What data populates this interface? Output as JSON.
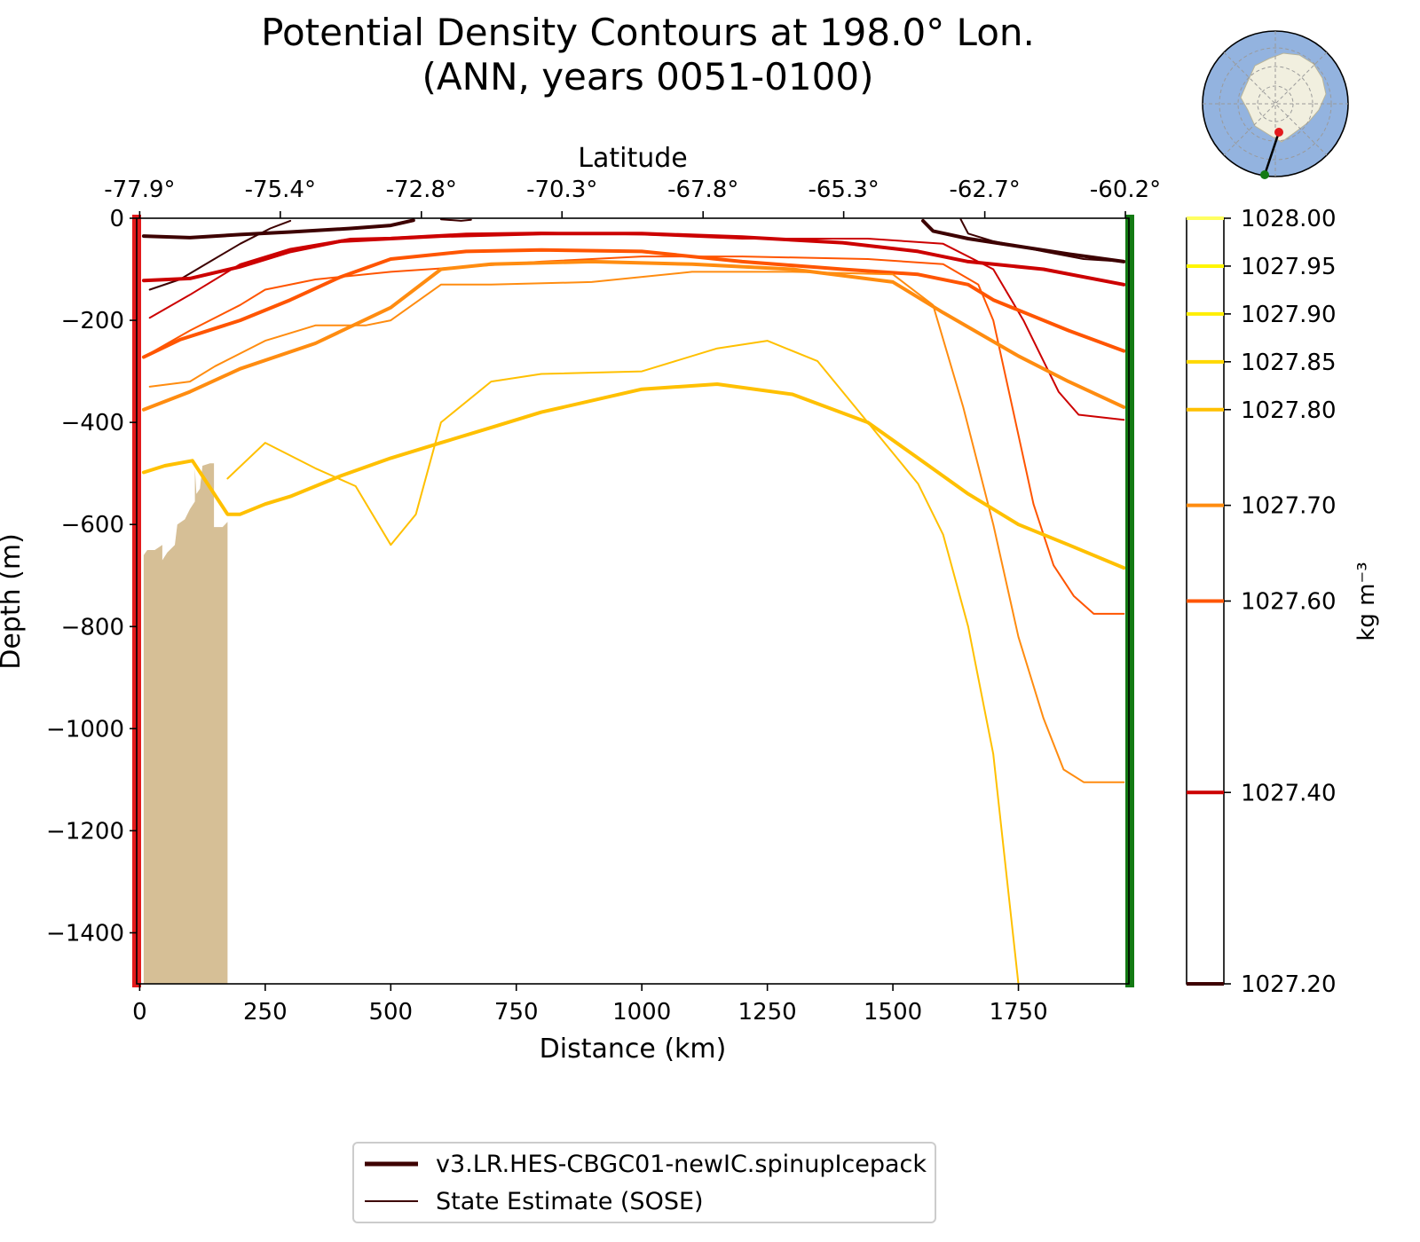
{
  "chart_data": {
    "type": "line",
    "title": "Potential Density Contours at 198.0° Lon.",
    "subtitle": "(ANN, years 0051-0100)",
    "xlabel": "Distance (km)",
    "ylabel": "Depth (m)",
    "top_xlabel": "Latitude",
    "xlim": [
      -6,
      1970
    ],
    "ylim": [
      -1500,
      0
    ],
    "x_ticks": [
      0,
      250,
      500,
      750,
      1000,
      1250,
      1500,
      1750
    ],
    "x_tick_labels": [
      "0",
      "250",
      "500",
      "750",
      "1000",
      "1250",
      "1500",
      "1750"
    ],
    "y_ticks": [
      0,
      -200,
      -400,
      -600,
      -800,
      -1000,
      -1200,
      -1400
    ],
    "y_tick_labels": [
      "0",
      "−200",
      "−400",
      "−600",
      "−800",
      "−1000",
      "−1200",
      "−1400"
    ],
    "lat_ticks_km": [
      0,
      280,
      561,
      841,
      1122,
      1402,
      1683,
      1963
    ],
    "lat_tick_labels": [
      "-77.9°",
      "-75.4°",
      "-72.8°",
      "-70.3°",
      "-67.8°",
      "-65.3°",
      "-62.7°",
      "-60.2°"
    ],
    "start_marker_color": "#e31a1c",
    "end_marker_color": "#137a13",
    "bathymetry_color": "#d6bf96",
    "bathymetry": [
      [
        8,
        -1500
      ],
      [
        8,
        -660
      ],
      [
        15,
        -650
      ],
      [
        30,
        -650
      ],
      [
        45,
        -640
      ],
      [
        45,
        -670
      ],
      [
        55,
        -655
      ],
      [
        70,
        -640
      ],
      [
        75,
        -600
      ],
      [
        90,
        -590
      ],
      [
        100,
        -570
      ],
      [
        110,
        -555
      ],
      [
        110,
        -490
      ],
      [
        113,
        -540
      ],
      [
        120,
        -530
      ],
      [
        125,
        -485
      ],
      [
        140,
        -480
      ],
      [
        148,
        -480
      ],
      [
        148,
        -605
      ],
      [
        165,
        -605
      ],
      [
        175,
        -595
      ],
      [
        175,
        -1500
      ]
    ],
    "colorbar": {
      "label": "kg m⁻³",
      "levels": [
        1027.2,
        1027.4,
        1027.6,
        1027.7,
        1027.8,
        1027.85,
        1027.9,
        1027.95,
        1028.0
      ],
      "tick_labels": [
        "1027.20",
        "1027.40",
        "1027.60",
        "1027.70",
        "1027.80",
        "1027.85",
        "1027.90",
        "1027.95",
        "1028.00"
      ],
      "colors": [
        "#3d0000",
        "#cc0000",
        "#ff5500",
        "#ff8c10",
        "#ffc000",
        "#ffd800",
        "#ffee00",
        "#fff600",
        "#ffff60"
      ]
    },
    "legend": [
      {
        "name": "v3.LR.HES-CBGC01-newIC.spinupIcepack",
        "style": "thick",
        "color": "#3d0000"
      },
      {
        "name": "State Estimate (SOSE)",
        "style": "thin",
        "color": "#3d0000"
      }
    ],
    "series": [
      {
        "source": "model",
        "level": 1027.2,
        "color": "#3d0000",
        "points": [
          [
            8,
            -35
          ],
          [
            100,
            -38
          ],
          [
            200,
            -32
          ],
          [
            300,
            -27
          ],
          [
            420,
            -20
          ],
          [
            500,
            -14
          ],
          [
            545,
            -4
          ]
        ]
      },
      {
        "source": "model",
        "level": 1027.2,
        "color": "#3d0000",
        "points": [
          [
            1560,
            -5
          ],
          [
            1580,
            -25
          ],
          [
            1650,
            -40
          ],
          [
            1750,
            -55
          ],
          [
            1850,
            -70
          ],
          [
            1960,
            -85
          ]
        ]
      },
      {
        "source": "sose",
        "level": 1027.2,
        "color": "#3d0000",
        "points": [
          [
            20,
            -140
          ],
          [
            80,
            -120
          ],
          [
            140,
            -85
          ],
          [
            200,
            -50
          ],
          [
            260,
            -20
          ],
          [
            300,
            -5
          ]
        ]
      },
      {
        "source": "sose",
        "level": 1027.2,
        "color": "#3d0000",
        "points": [
          [
            600,
            -2
          ],
          [
            640,
            -5
          ],
          [
            660,
            -3
          ]
        ]
      },
      {
        "source": "sose",
        "level": 1027.2,
        "color": "#3d0000",
        "points": [
          [
            1635,
            -2
          ],
          [
            1650,
            -30
          ],
          [
            1700,
            -45
          ],
          [
            1800,
            -65
          ],
          [
            1880,
            -80
          ],
          [
            1960,
            -85
          ]
        ]
      },
      {
        "source": "model",
        "level": 1027.4,
        "color": "#cc0000",
        "points": [
          [
            8,
            -122
          ],
          [
            100,
            -118
          ],
          [
            200,
            -95
          ],
          [
            300,
            -65
          ],
          [
            400,
            -45
          ],
          [
            600,
            -35
          ],
          [
            800,
            -30
          ],
          [
            1000,
            -30
          ],
          [
            1200,
            -37
          ],
          [
            1400,
            -48
          ],
          [
            1550,
            -65
          ],
          [
            1650,
            -85
          ],
          [
            1800,
            -100
          ],
          [
            1960,
            -130
          ]
        ]
      },
      {
        "source": "sose",
        "level": 1027.4,
        "color": "#cc0000",
        "points": [
          [
            20,
            -195
          ],
          [
            100,
            -150
          ],
          [
            200,
            -90
          ],
          [
            300,
            -60
          ],
          [
            420,
            -40
          ],
          [
            500,
            -38
          ],
          [
            650,
            -30
          ],
          [
            800,
            -28
          ],
          [
            1000,
            -32
          ],
          [
            1200,
            -40
          ],
          [
            1450,
            -40
          ],
          [
            1600,
            -50
          ],
          [
            1700,
            -100
          ],
          [
            1760,
            -200
          ],
          [
            1830,
            -340
          ],
          [
            1870,
            -385
          ],
          [
            1960,
            -395
          ]
        ]
      },
      {
        "source": "model",
        "level": 1027.6,
        "color": "#ff5500",
        "points": [
          [
            8,
            -272
          ],
          [
            80,
            -238
          ],
          [
            200,
            -200
          ],
          [
            300,
            -160
          ],
          [
            400,
            -115
          ],
          [
            500,
            -80
          ],
          [
            650,
            -65
          ],
          [
            800,
            -62
          ],
          [
            1000,
            -65
          ],
          [
            1200,
            -85
          ],
          [
            1400,
            -100
          ],
          [
            1550,
            -110
          ],
          [
            1650,
            -130
          ],
          [
            1700,
            -160
          ],
          [
            1850,
            -220
          ],
          [
            1960,
            -260
          ]
        ]
      },
      {
        "source": "sose",
        "level": 1027.6,
        "color": "#ff5500",
        "points": [
          [
            20,
            -265
          ],
          [
            100,
            -220
          ],
          [
            200,
            -170
          ],
          [
            250,
            -140
          ],
          [
            350,
            -120
          ],
          [
            500,
            -105
          ],
          [
            650,
            -95
          ],
          [
            800,
            -85
          ],
          [
            1000,
            -75
          ],
          [
            1200,
            -75
          ],
          [
            1450,
            -80
          ],
          [
            1600,
            -90
          ],
          [
            1670,
            -130
          ],
          [
            1700,
            -200
          ],
          [
            1740,
            -380
          ],
          [
            1780,
            -560
          ],
          [
            1820,
            -680
          ],
          [
            1860,
            -740
          ],
          [
            1900,
            -775
          ],
          [
            1960,
            -775
          ]
        ]
      },
      {
        "source": "model",
        "level": 1027.7,
        "color": "#ff8c10",
        "points": [
          [
            8,
            -375
          ],
          [
            100,
            -340
          ],
          [
            200,
            -295
          ],
          [
            350,
            -245
          ],
          [
            500,
            -175
          ],
          [
            600,
            -100
          ],
          [
            700,
            -90
          ],
          [
            900,
            -85
          ],
          [
            1100,
            -90
          ],
          [
            1300,
            -100
          ],
          [
            1500,
            -125
          ],
          [
            1600,
            -185
          ],
          [
            1750,
            -270
          ],
          [
            1850,
            -320
          ],
          [
            1960,
            -370
          ]
        ]
      },
      {
        "source": "sose",
        "level": 1027.7,
        "color": "#ff8c10",
        "points": [
          [
            20,
            -330
          ],
          [
            100,
            -320
          ],
          [
            150,
            -290
          ],
          [
            250,
            -240
          ],
          [
            350,
            -210
          ],
          [
            450,
            -210
          ],
          [
            500,
            -200
          ],
          [
            600,
            -130
          ],
          [
            700,
            -130
          ],
          [
            900,
            -125
          ],
          [
            1100,
            -105
          ],
          [
            1300,
            -105
          ],
          [
            1500,
            -110
          ],
          [
            1580,
            -170
          ],
          [
            1640,
            -370
          ],
          [
            1700,
            -600
          ],
          [
            1750,
            -820
          ],
          [
            1800,
            -980
          ],
          [
            1840,
            -1080
          ],
          [
            1880,
            -1105
          ],
          [
            1960,
            -1105
          ]
        ]
      },
      {
        "source": "model",
        "level": 1027.8,
        "color": "#ffc000",
        "points": [
          [
            8,
            -498
          ],
          [
            50,
            -485
          ],
          [
            105,
            -475
          ],
          [
            175,
            -580
          ],
          [
            200,
            -580
          ],
          [
            250,
            -560
          ],
          [
            300,
            -545
          ],
          [
            400,
            -505
          ],
          [
            500,
            -470
          ],
          [
            600,
            -440
          ],
          [
            700,
            -410
          ],
          [
            800,
            -380
          ],
          [
            1000,
            -335
          ],
          [
            1150,
            -325
          ],
          [
            1300,
            -345
          ],
          [
            1450,
            -400
          ],
          [
            1550,
            -470
          ],
          [
            1650,
            -540
          ],
          [
            1750,
            -600
          ],
          [
            1850,
            -640
          ],
          [
            1960,
            -685
          ]
        ]
      },
      {
        "source": "sose",
        "level": 1027.8,
        "color": "#ffc000",
        "points": [
          [
            175,
            -510
          ],
          [
            250,
            -440
          ],
          [
            350,
            -490
          ],
          [
            430,
            -525
          ],
          [
            500,
            -640
          ],
          [
            550,
            -580
          ],
          [
            600,
            -400
          ],
          [
            700,
            -320
          ],
          [
            800,
            -305
          ],
          [
            1000,
            -300
          ],
          [
            1150,
            -255
          ],
          [
            1250,
            -240
          ],
          [
            1350,
            -280
          ],
          [
            1450,
            -400
          ],
          [
            1550,
            -520
          ],
          [
            1600,
            -620
          ],
          [
            1650,
            -800
          ],
          [
            1700,
            -1050
          ],
          [
            1750,
            -1500
          ]
        ]
      }
    ]
  }
}
